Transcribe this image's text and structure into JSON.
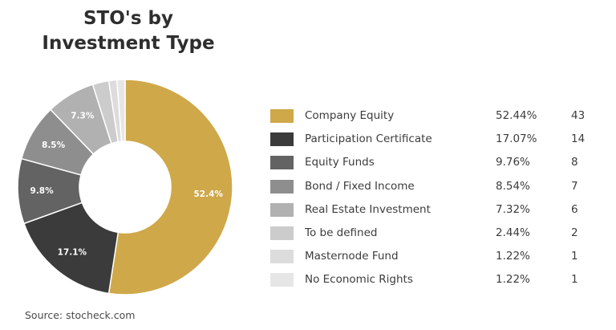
{
  "title_lines": [
    "STO's by",
    "Investment Type"
  ],
  "source": "Source: stocheck.com",
  "chart_data": {
    "type": "pie",
    "title": "STO's by Investment Type",
    "donut": true,
    "legend_position": "right",
    "categories": [
      "Company Equity",
      "Participation Certificate",
      "Equity Funds",
      "Bond / Fixed Income",
      "Real Estate Investment",
      "To be defined",
      "Masternode Fund",
      "No Economic Rights"
    ],
    "values": [
      52.44,
      17.07,
      9.76,
      8.54,
      7.32,
      2.44,
      1.22,
      1.22
    ],
    "percent_labels": [
      "52.44%",
      "17.07%",
      "9.76%",
      "8.54%",
      "7.32%",
      "2.44%",
      "1.22%",
      "1.22%"
    ],
    "counts": [
      43,
      14,
      8,
      7,
      6,
      2,
      1,
      1
    ],
    "slice_labels": [
      "52.4%",
      "17.1%",
      "9.8%",
      "8.5%",
      "7.3%",
      "",
      "",
      ""
    ],
    "colors": [
      "#cfa84a",
      "#3b3b3b",
      "#636363",
      "#8e8e8e",
      "#b1b1b1",
      "#cccccc",
      "#dcdcdc",
      "#e6e6e6"
    ],
    "label_colors": [
      "#ffffff",
      "#ffffff",
      "#ffffff",
      "#ffffff",
      "#ffffff",
      "#ffffff",
      "#ffffff",
      "#ffffff"
    ]
  }
}
